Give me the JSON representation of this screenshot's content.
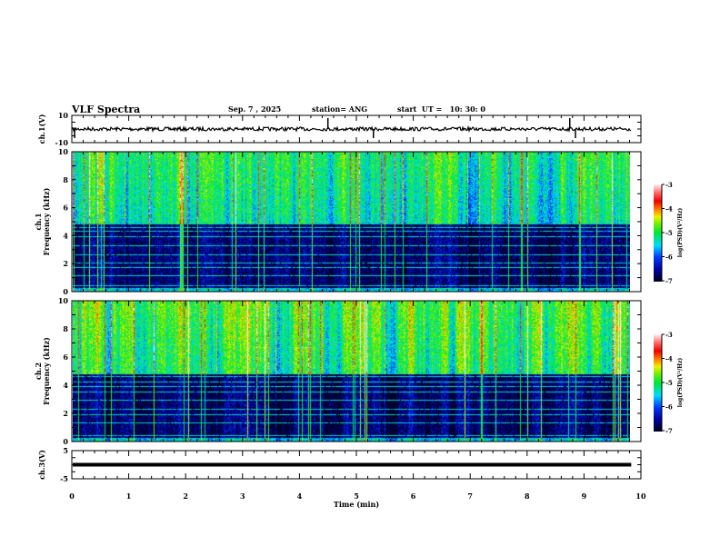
{
  "header": {
    "title": "VLF Spectra",
    "date": "Sep. 7 , 2025",
    "station": "station= ANG",
    "start": "start  UT =   10: 30: 0"
  },
  "chart_data": [
    {
      "type": "line",
      "name": "ch1-waveform",
      "ylabel": "ch.1(V)",
      "ylim": [
        -10,
        10
      ],
      "ytick_labels": [
        "10",
        "-10"
      ],
      "xlim": [
        0,
        10
      ],
      "baseline": 0,
      "spikes_min": [
        0.05,
        4.5,
        5.3,
        8.75,
        8.85
      ]
    },
    {
      "type": "heatmap",
      "name": "ch1-spectrogram",
      "ylabel": "ch.1\nFrequency (kHz)",
      "ylim": [
        0,
        10
      ],
      "ytick_labels": [
        "0",
        "2",
        "4",
        "6",
        "8",
        "10"
      ],
      "xlim": [
        0,
        10
      ],
      "data_end_min": 9.83,
      "narrowband_lines_khz": [
        0.4,
        1.1,
        1.7,
        2.0,
        2.6,
        3.3,
        3.9,
        4.3,
        4.6
      ],
      "colorbar": {
        "label": "log(PSD)(V²/Hz)",
        "range": [
          -7,
          -3
        ],
        "tick_labels": [
          "-3",
          "-4",
          "-5",
          "-6",
          "-7"
        ]
      }
    },
    {
      "type": "heatmap",
      "name": "ch2-spectrogram",
      "ylabel": "ch.2\nFrequency (kHz)",
      "ylim": [
        0,
        10
      ],
      "ytick_labels": [
        "0",
        "2",
        "4",
        "6",
        "8",
        "10"
      ],
      "xlim": [
        0,
        10
      ],
      "data_end_min": 9.83,
      "narrowband_lines_khz": [
        0.4,
        1.3,
        1.9,
        2.3,
        2.9,
        3.5,
        3.9,
        4.2,
        4.6
      ],
      "colorbar": {
        "label": "log(PSD)(V²/Hz)",
        "range": [
          -7,
          -3
        ],
        "tick_labels": [
          "-3",
          "-4",
          "-5",
          "-6",
          "-7"
        ]
      }
    },
    {
      "type": "line",
      "name": "ch3-waveform",
      "ylabel": "ch.3(V)",
      "ylim": [
        -5,
        5
      ],
      "ytick_labels": [
        "5",
        "-5"
      ],
      "xlim": [
        0,
        10
      ],
      "baseline": 0,
      "xlabel": "Time  (min)",
      "xtick_labels": [
        "0",
        "1",
        "2",
        "3",
        "4",
        "5",
        "6",
        "7",
        "8",
        "9",
        "10"
      ]
    }
  ]
}
